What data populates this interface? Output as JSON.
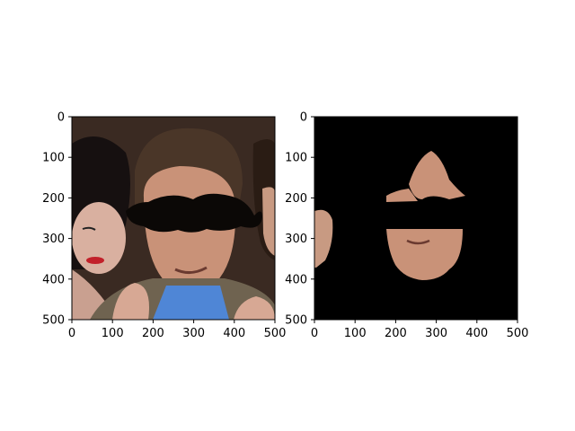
{
  "chart_data": [
    {
      "type": "image",
      "title": "",
      "xlabel": "",
      "ylabel": "",
      "xlim": [
        0,
        500
      ],
      "ylim": [
        500,
        0
      ],
      "xticks": [
        0,
        100,
        200,
        300,
        400,
        500
      ],
      "yticks": [
        0,
        100,
        200,
        300,
        400,
        500
      ],
      "xtick_labels": [
        "0",
        "100",
        "200",
        "300",
        "400",
        "500"
      ],
      "ytick_labels": [
        "0",
        "100",
        "200",
        "300",
        "400",
        "500"
      ],
      "grid": false,
      "content": "photo-with-mustache-overlay",
      "colors": {
        "background": "#3a2a22",
        "hair": "#1c140f",
        "skin": "#c99278",
        "shirt": "#4f86d6",
        "jacket": "#6f6350",
        "mustache": "#0b0806"
      }
    },
    {
      "type": "image",
      "title": "",
      "xlabel": "",
      "ylabel": "",
      "xlim": [
        0,
        500
      ],
      "ylim": [
        500,
        0
      ],
      "xticks": [
        0,
        100,
        200,
        300,
        400,
        500
      ],
      "yticks": [
        0,
        100,
        200,
        300,
        400,
        500
      ],
      "xtick_labels": [
        "0",
        "100",
        "200",
        "300",
        "400",
        "500"
      ],
      "ytick_labels": [
        "0",
        "100",
        "200",
        "300",
        "400",
        "500"
      ],
      "grid": false,
      "content": "face-segmentation-mask",
      "colors": {
        "background": "#000000",
        "skin": "#c99278"
      }
    }
  ]
}
